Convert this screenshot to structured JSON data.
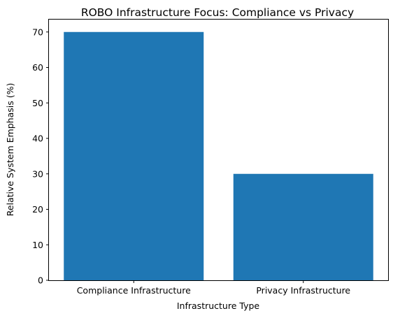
{
  "chart_data": {
    "type": "bar",
    "title": "ROBO Infrastructure Focus: Compliance vs Privacy",
    "xlabel": "Infrastructure Type",
    "ylabel": "Relative System Emphasis (%)",
    "categories": [
      "Compliance Infrastructure",
      "Privacy Infrastructure"
    ],
    "values": [
      70,
      30
    ],
    "ylim": [
      0,
      73.5
    ],
    "yticks": [
      0,
      10,
      20,
      30,
      40,
      50,
      60,
      70
    ],
    "bar_color": "#1f77b4",
    "grid": false,
    "legend": "none"
  }
}
